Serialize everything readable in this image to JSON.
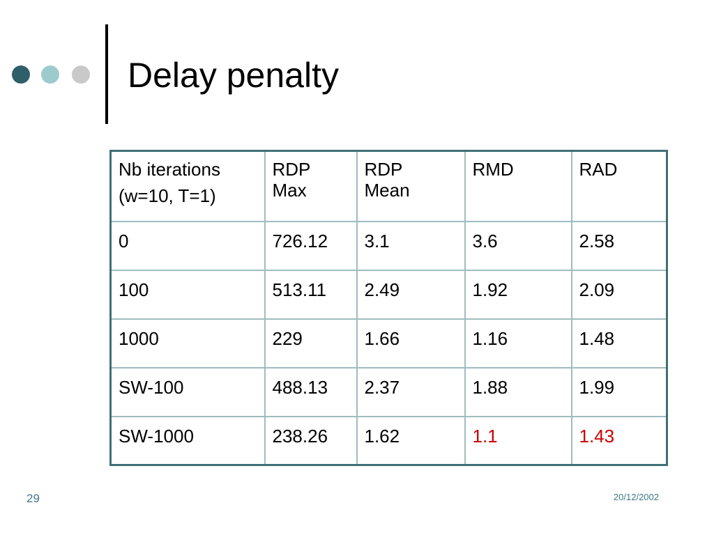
{
  "header": {
    "title": "Delay penalty"
  },
  "table": {
    "columns": [
      [
        "Nb iterations",
        "(w=10, T=1)"
      ],
      [
        "RDP",
        "Max"
      ],
      [
        "RDP",
        "Mean"
      ],
      [
        "RMD"
      ],
      [
        "RAD"
      ]
    ],
    "rows": [
      [
        "0",
        "726.12",
        "3.1",
        "3.6",
        "2.58"
      ],
      [
        "100",
        "513.11",
        "2.49",
        "1.92",
        "2.09"
      ],
      [
        "1000",
        "229",
        "1.66",
        "1.16",
        "1.48"
      ],
      [
        "SW-100",
        "488.13",
        "2.37",
        "1.88",
        "1.99"
      ],
      [
        "SW-1000",
        "238.26",
        "1.62",
        "1.1",
        "1.43"
      ]
    ],
    "highlight_color": "#cc0000"
  },
  "footer": {
    "page_number": "29",
    "date": "20/12/2002"
  }
}
